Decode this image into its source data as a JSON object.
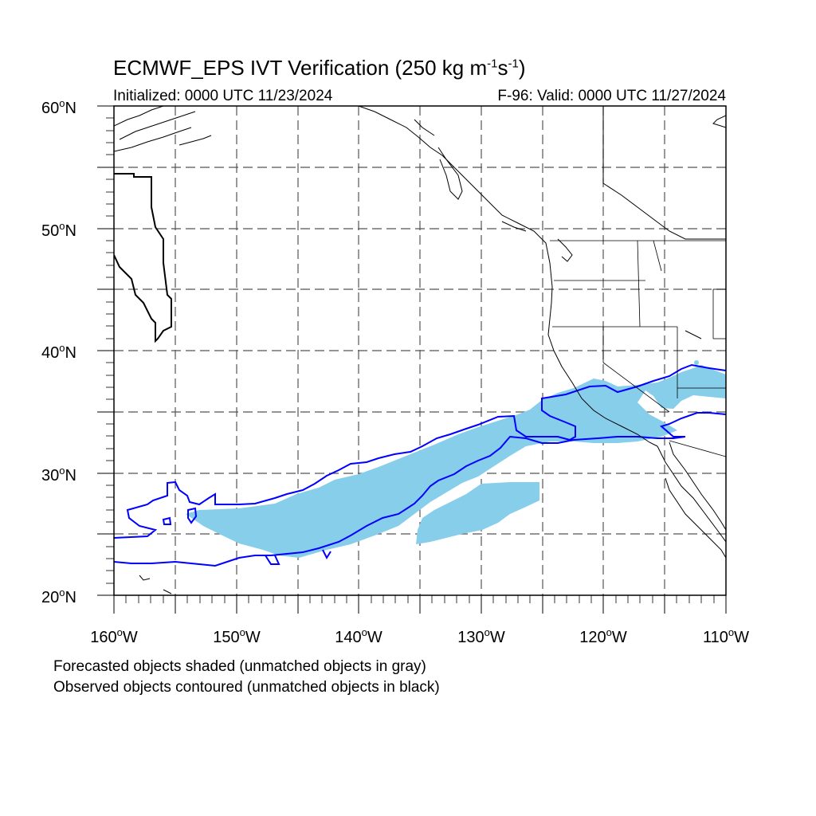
{
  "title": {
    "main": "ECMWF_EPS IVT Verification (250 kg m",
    "exp1": "-1",
    "mid": "s",
    "exp2": "-1",
    "close": ")"
  },
  "initialized": "Initialized: 0000 UTC 11/23/2024",
  "valid": "F-96: Valid: 0000 UTC 11/27/2024",
  "lat_labels": [
    {
      "text": "60",
      "hemi": "N"
    },
    {
      "text": "50",
      "hemi": "N"
    },
    {
      "text": "40",
      "hemi": "N"
    },
    {
      "text": "30",
      "hemi": "N"
    },
    {
      "text": "20",
      "hemi": "N"
    }
  ],
  "lon_labels": [
    {
      "text": "160",
      "hemi": "W"
    },
    {
      "text": "150",
      "hemi": "W"
    },
    {
      "text": "140",
      "hemi": "W"
    },
    {
      "text": "130",
      "hemi": "W"
    },
    {
      "text": "120",
      "hemi": "W"
    },
    {
      "text": "110",
      "hemi": "W"
    }
  ],
  "map": {
    "lon_range": [
      -160,
      -110
    ],
    "lat_range": [
      20,
      60
    ],
    "forecast_fill": "#87ceea",
    "observed_matched_color": "#0000ff",
    "observed_unmatched_color": "#000000"
  },
  "notes": {
    "forecast": "Forecasted objects shaded (unmatched objects in gray)",
    "observed": "Observed objects contoured (unmatched objects in black)"
  }
}
